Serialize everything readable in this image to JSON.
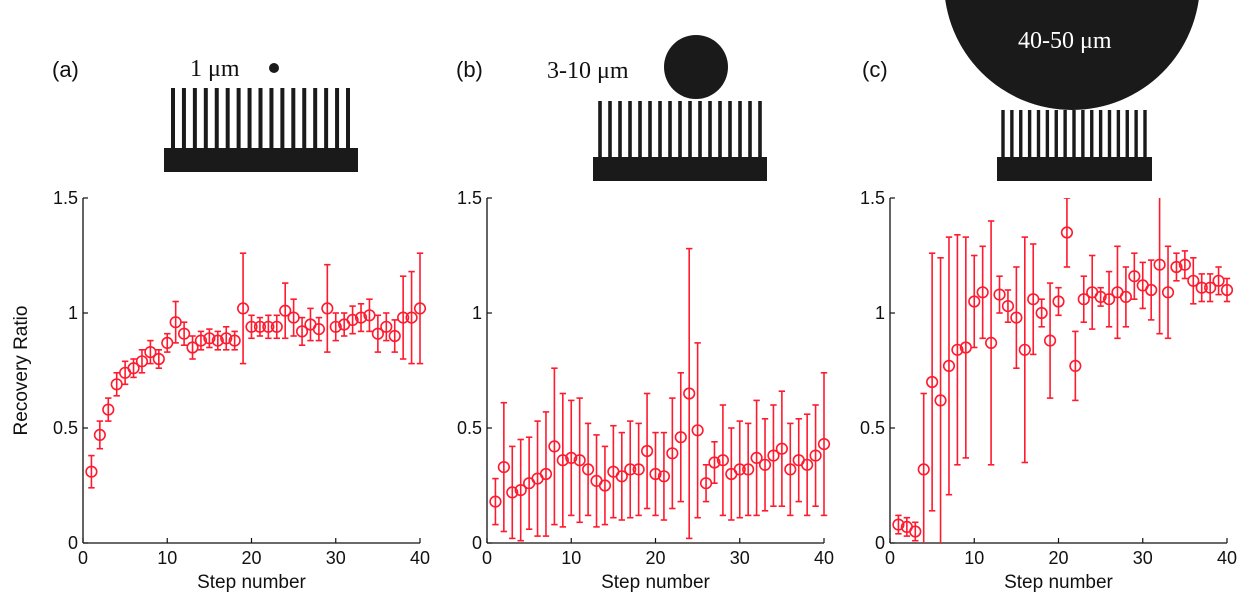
{
  "colors": {
    "series": "#ff1a2e",
    "axis": "#111111",
    "schematic": "#1a1a1a"
  },
  "chart_data": [
    {
      "type": "scatter",
      "panel_label": "(a)",
      "inset_label": "1 μm",
      "title": "",
      "xlabel": "Step number",
      "ylabel": "Recovery Ratio",
      "xlim": [
        0,
        40
      ],
      "ylim": [
        0,
        1.5
      ],
      "xticks": [
        "0",
        "10",
        "20",
        "30",
        "40"
      ],
      "yticks": [
        "0",
        "0.5",
        "1",
        "1.5"
      ],
      "grid": false,
      "marker": "circle",
      "error_bars": true,
      "x": [
        1,
        2,
        3,
        4,
        5,
        6,
        7,
        8,
        9,
        10,
        11,
        12,
        13,
        14,
        15,
        16,
        17,
        18,
        19,
        20,
        21,
        22,
        23,
        24,
        25,
        26,
        27,
        28,
        29,
        30,
        31,
        32,
        33,
        34,
        35,
        36,
        37,
        38,
        39,
        40
      ],
      "y": [
        0.31,
        0.47,
        0.58,
        0.69,
        0.74,
        0.76,
        0.79,
        0.83,
        0.8,
        0.87,
        0.96,
        0.91,
        0.85,
        0.88,
        0.89,
        0.88,
        0.89,
        0.88,
        1.02,
        0.94,
        0.94,
        0.94,
        0.94,
        1.01,
        0.98,
        0.92,
        0.95,
        0.93,
        1.02,
        0.94,
        0.95,
        0.97,
        0.98,
        0.99,
        0.91,
        0.94,
        0.9,
        0.98,
        0.98,
        1.02
      ],
      "err": [
        0.07,
        0.06,
        0.05,
        0.05,
        0.05,
        0.04,
        0.05,
        0.05,
        0.04,
        0.04,
        0.09,
        0.05,
        0.05,
        0.04,
        0.04,
        0.04,
        0.05,
        0.04,
        0.24,
        0.05,
        0.04,
        0.05,
        0.05,
        0.12,
        0.08,
        0.06,
        0.07,
        0.05,
        0.19,
        0.06,
        0.05,
        0.06,
        0.06,
        0.07,
        0.08,
        0.06,
        0.07,
        0.18,
        0.2,
        0.24
      ]
    },
    {
      "type": "scatter",
      "panel_label": "(b)",
      "inset_label": "3-10 μm",
      "title": "",
      "xlabel": "Step number",
      "ylabel": "",
      "xlim": [
        0,
        40
      ],
      "ylim": [
        0,
        1.5
      ],
      "xticks": [
        "0",
        "10",
        "20",
        "30",
        "40"
      ],
      "yticks": [
        "0",
        "0.5",
        "1",
        "1.5"
      ],
      "grid": false,
      "marker": "circle",
      "error_bars": true,
      "x": [
        1,
        2,
        3,
        4,
        5,
        6,
        7,
        8,
        9,
        10,
        11,
        12,
        13,
        14,
        15,
        16,
        17,
        18,
        19,
        20,
        21,
        22,
        23,
        24,
        25,
        26,
        27,
        28,
        29,
        30,
        31,
        32,
        33,
        34,
        35,
        36,
        37,
        38,
        39,
        40
      ],
      "y": [
        0.18,
        0.33,
        0.22,
        0.23,
        0.26,
        0.28,
        0.3,
        0.42,
        0.36,
        0.37,
        0.36,
        0.32,
        0.27,
        0.25,
        0.31,
        0.29,
        0.32,
        0.32,
        0.4,
        0.3,
        0.29,
        0.39,
        0.46,
        0.65,
        0.49,
        0.26,
        0.35,
        0.36,
        0.3,
        0.32,
        0.32,
        0.37,
        0.34,
        0.38,
        0.41,
        0.32,
        0.36,
        0.34,
        0.38,
        0.43
      ],
      "err": [
        0.1,
        0.28,
        0.2,
        0.22,
        0.2,
        0.25,
        0.27,
        0.34,
        0.29,
        0.25,
        0.27,
        0.2,
        0.2,
        0.17,
        0.2,
        0.19,
        0.21,
        0.2,
        0.25,
        0.18,
        0.19,
        0.24,
        0.28,
        0.63,
        0.38,
        0.08,
        0.09,
        0.24,
        0.2,
        0.21,
        0.2,
        0.25,
        0.2,
        0.22,
        0.25,
        0.2,
        0.18,
        0.22,
        0.22,
        0.31
      ]
    },
    {
      "type": "scatter",
      "panel_label": "(c)",
      "inset_label": "40-50 μm",
      "title": "",
      "xlabel": "Step number",
      "ylabel": "",
      "xlim": [
        0,
        40
      ],
      "ylim": [
        0,
        1.5
      ],
      "xticks": [
        "0",
        "10",
        "20",
        "30",
        "40"
      ],
      "yticks": [
        "0",
        "0.5",
        "1",
        "1.5"
      ],
      "grid": false,
      "marker": "circle",
      "error_bars": true,
      "x": [
        1,
        2,
        3,
        4,
        5,
        6,
        7,
        8,
        9,
        10,
        11,
        12,
        13,
        14,
        15,
        16,
        17,
        18,
        19,
        20,
        21,
        22,
        23,
        24,
        25,
        26,
        27,
        28,
        29,
        30,
        31,
        32,
        33,
        34,
        35,
        36,
        37,
        38,
        39,
        40
      ],
      "y": [
        0.08,
        0.07,
        0.05,
        0.32,
        0.7,
        0.62,
        0.77,
        0.84,
        0.85,
        1.05,
        1.09,
        0.87,
        1.08,
        1.03,
        0.98,
        0.84,
        1.06,
        1.0,
        0.88,
        1.05,
        1.35,
        0.77,
        1.06,
        1.09,
        1.07,
        1.06,
        1.09,
        1.07,
        1.16,
        1.12,
        1.1,
        1.21,
        1.09,
        1.2,
        1.21,
        1.14,
        1.11,
        1.11,
        1.14,
        1.1
      ],
      "err": [
        0.04,
        0.04,
        0.04,
        0.33,
        0.56,
        0.62,
        0.56,
        0.5,
        0.48,
        0.2,
        0.2,
        0.53,
        0.08,
        0.07,
        0.22,
        0.49,
        0.24,
        0.06,
        0.25,
        0.06,
        0.15,
        0.15,
        0.1,
        0.16,
        0.04,
        0.12,
        0.2,
        0.13,
        0.1,
        0.1,
        0.13,
        0.3,
        0.2,
        0.06,
        0.06,
        0.1,
        0.06,
        0.06,
        0.06,
        0.05
      ]
    }
  ]
}
